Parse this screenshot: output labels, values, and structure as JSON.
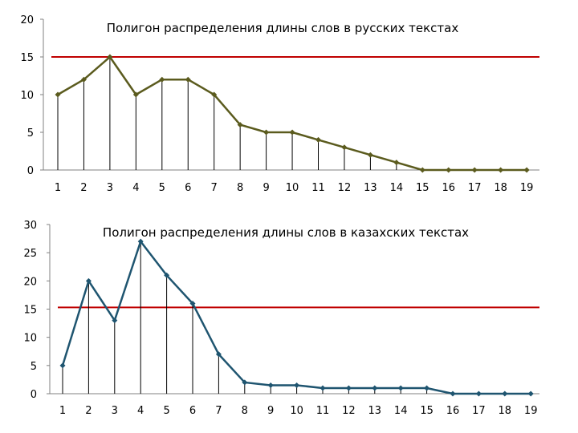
{
  "chart_data": [
    {
      "type": "line",
      "title": "Полигон распределения длины слов  в русских текстах",
      "categories": [
        "1",
        "2",
        "3",
        "4",
        "5",
        "6",
        "7",
        "8",
        "9",
        "10",
        "11",
        "12",
        "13",
        "14",
        "15",
        "16",
        "17",
        "18",
        "19"
      ],
      "series": [
        {
          "values": [
            10,
            12,
            15,
            10,
            12,
            12,
            10,
            6,
            5,
            5,
            4,
            3,
            2,
            1,
            0,
            0,
            0,
            0,
            0
          ]
        }
      ],
      "reference_line": 15,
      "ylim": [
        0,
        20
      ],
      "yticks": [
        "0",
        "5",
        "10",
        "15",
        "20"
      ],
      "drop_lines": true,
      "grid": false,
      "colors": {
        "series": "#5b5b1e",
        "reference": "#c00000",
        "axis": "#808080"
      }
    },
    {
      "type": "line",
      "title": "Полигон распределения длины слов  в казахских текстах",
      "categories": [
        "1",
        "2",
        "3",
        "4",
        "5",
        "6",
        "7",
        "8",
        "9",
        "10",
        "11",
        "12",
        "13",
        "14",
        "15",
        "16",
        "17",
        "18",
        "19"
      ],
      "series": [
        {
          "values": [
            5,
            20,
            13,
            27,
            21,
            16,
            7,
            2,
            1.5,
            1.5,
            1,
            1,
            1,
            1,
            1,
            0,
            0,
            0,
            0
          ]
        }
      ],
      "reference_line": 15.3,
      "ylim": [
        0,
        30
      ],
      "yticks": [
        "0",
        "5",
        "10",
        "15",
        "20",
        "25",
        "30"
      ],
      "drop_lines": true,
      "grid": false,
      "colors": {
        "series": "#1f5570",
        "reference": "#c00000",
        "axis": "#808080"
      }
    }
  ]
}
